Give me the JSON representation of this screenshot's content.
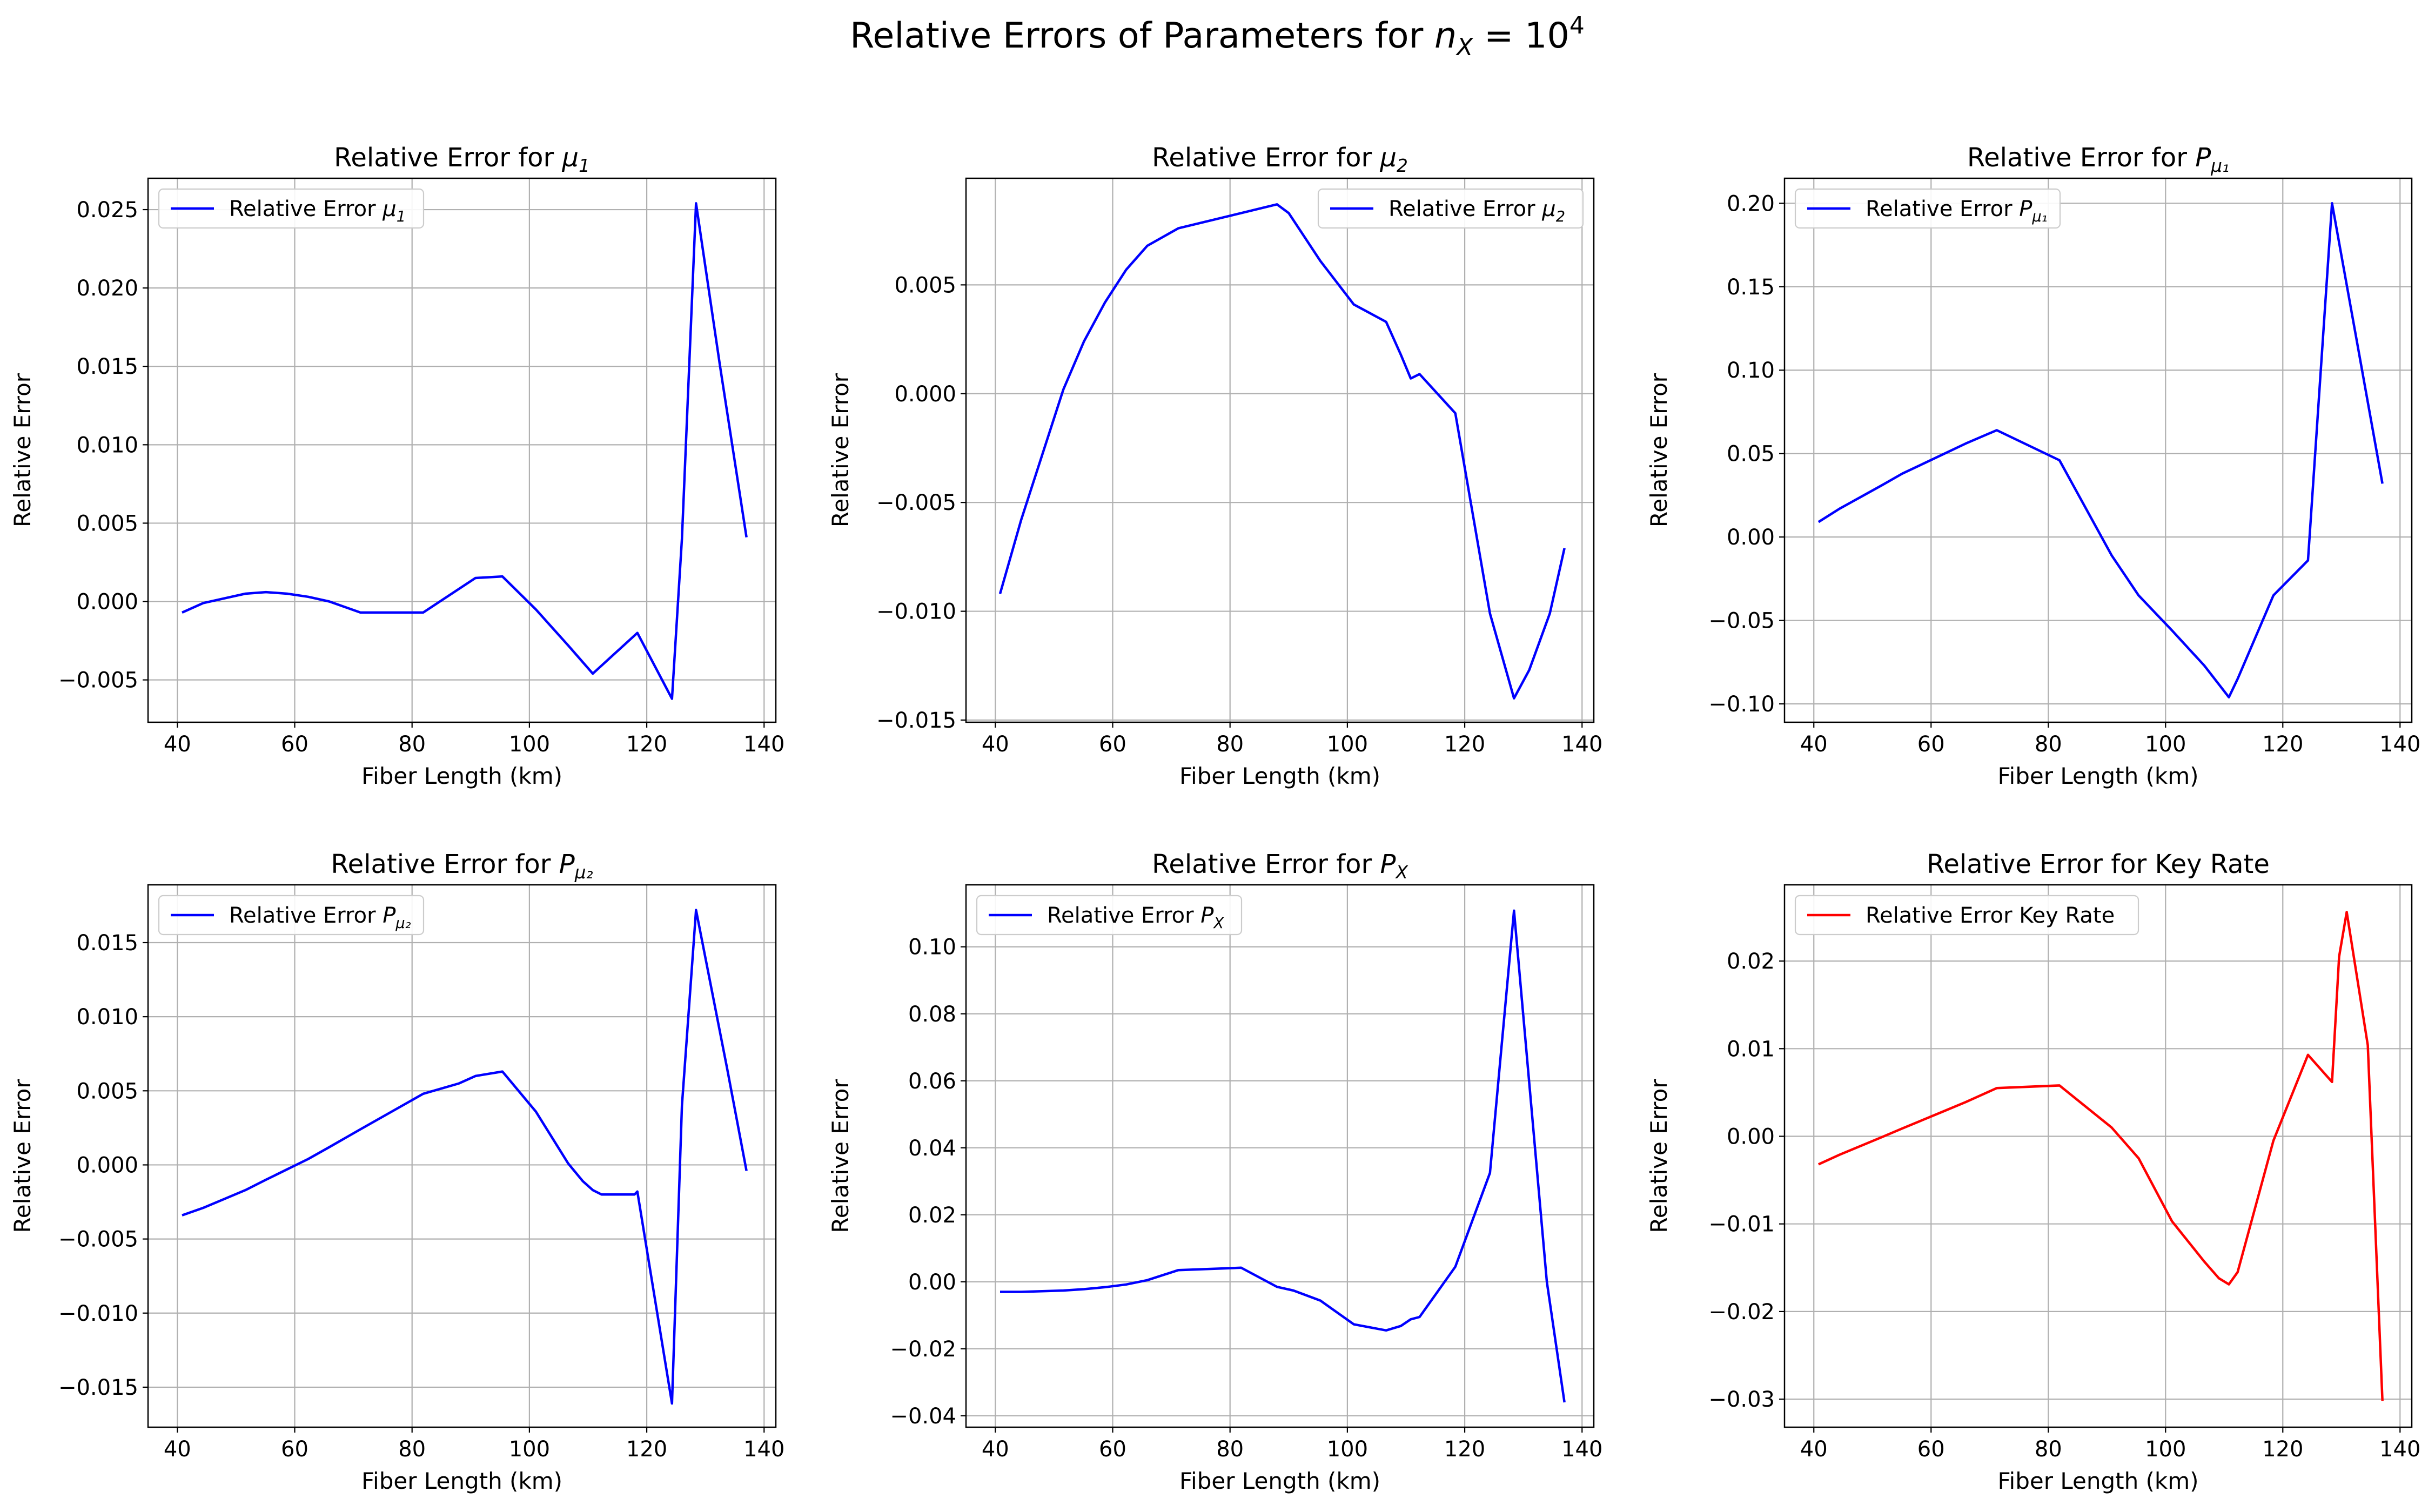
{
  "figure": {
    "title_prefix": "Relative Errors of Parameters for ",
    "title_math": "n",
    "title_math_sub": "X",
    "title_eq": " = 10",
    "title_sup": "4"
  },
  "chart_data": [
    {
      "type": "line",
      "title": "Relative Error for μ₁",
      "title_prefix": "Relative Error for ",
      "title_sym": "μ",
      "title_sub": "1",
      "xlabel": "Fiber Length (km)",
      "ylabel": "Relative Error",
      "xlim": [
        35,
        142
      ],
      "ylim": [
        -0.0077,
        0.027
      ],
      "xticks": [
        40,
        60,
        80,
        100,
        120,
        140
      ],
      "yticks": [
        -0.005,
        0.0,
        0.005,
        0.01,
        0.015,
        0.02,
        0.025
      ],
      "ytick_labels": [
        "−0.005",
        "0.000",
        "0.005",
        "0.010",
        "0.015",
        "0.020",
        "0.025"
      ],
      "grid": true,
      "legend_position": "top-left",
      "series": [
        {
          "name": "Relative Error μ₁",
          "legend_prefix": "Relative Error ",
          "legend_sym": "μ",
          "legend_sub": "1",
          "color": "#0000ff",
          "x": [
            40.8,
            44.4,
            48,
            51.6,
            55.1,
            58.7,
            62.3,
            65.9,
            71.2,
            81.9,
            90.8,
            95.4,
            101.1,
            106.6,
            110.8,
            118.4,
            124.3,
            126,
            128.4,
            132.5,
            137
          ],
          "y": [
            -0.0007,
            -0.0001,
            0.0002,
            0.0005,
            0.0006,
            0.0005,
            0.0003,
            0.0,
            -0.0007,
            -0.0007,
            0.0015,
            0.0016,
            -0.0005,
            -0.0028,
            -0.0046,
            -0.002,
            -0.0062,
            0.004,
            0.0254,
            0.015,
            0.0041
          ]
        }
      ]
    },
    {
      "type": "line",
      "title": "Relative Error for μ₂",
      "title_prefix": "Relative Error for ",
      "title_sym": "μ",
      "title_sub": "2",
      "xlabel": "Fiber Length (km)",
      "ylabel": "Relative Error",
      "xlim": [
        35,
        142
      ],
      "ylim": [
        -0.0151,
        0.0099
      ],
      "xticks": [
        40,
        60,
        80,
        100,
        120,
        140
      ],
      "yticks": [
        -0.015,
        -0.01,
        -0.005,
        0.0,
        0.005
      ],
      "ytick_labels": [
        "−0.015",
        "−0.010",
        "−0.005",
        "0.000",
        "0.005"
      ],
      "grid": true,
      "legend_position": "top-right",
      "series": [
        {
          "name": "Relative Error μ₂",
          "legend_prefix": "Relative Error ",
          "legend_sym": "μ",
          "legend_sub": "2",
          "color": "#0000ff",
          "x": [
            40.8,
            44.4,
            48,
            51.6,
            55.1,
            58.7,
            62.3,
            65.9,
            71.2,
            81.9,
            88,
            90,
            95.4,
            101.1,
            106.6,
            109.1,
            110.8,
            112.3,
            118.4,
            124.3,
            128.4,
            131,
            134.5,
            137
          ],
          "y": [
            -0.0092,
            -0.0058,
            -0.0028,
            0.0002,
            0.0024,
            0.0042,
            0.0057,
            0.0068,
            0.0076,
            0.0083,
            0.0087,
            0.0083,
            0.0061,
            0.0041,
            0.0033,
            0.0018,
            0.0007,
            0.0009,
            -0.0009,
            -0.0101,
            -0.014,
            -0.0127,
            -0.0101,
            -0.0071
          ]
        }
      ]
    },
    {
      "type": "line",
      "title": "Relative Error for P_μ₁",
      "title_prefix": "Relative Error for ",
      "title_sym": "P",
      "title_sub": "μ₁",
      "xlabel": "Fiber Length (km)",
      "ylabel": "Relative Error",
      "xlim": [
        35,
        142
      ],
      "ylim": [
        -0.111,
        0.215
      ],
      "xticks": [
        40,
        60,
        80,
        100,
        120,
        140
      ],
      "yticks": [
        -0.1,
        -0.05,
        0.0,
        0.05,
        0.1,
        0.15,
        0.2
      ],
      "ytick_labels": [
        "−0.10",
        "−0.05",
        "0.00",
        "0.05",
        "0.10",
        "0.15",
        "0.20"
      ],
      "grid": true,
      "legend_position": "top-left",
      "series": [
        {
          "name": "Relative Error P_μ₁",
          "legend_prefix": "Relative Error ",
          "legend_sym": "P",
          "legend_sub": "μ₁",
          "color": "#0000ff",
          "x": [
            40.8,
            44.4,
            48,
            51.6,
            55.1,
            58.7,
            62.3,
            65.9,
            71.2,
            81.9,
            90.8,
            95.4,
            101.1,
            106.6,
            110.8,
            112.3,
            118.4,
            124.3,
            128.4,
            132.5,
            137
          ],
          "y": [
            0.009,
            0.017,
            0.024,
            0.031,
            0.038,
            0.044,
            0.05,
            0.056,
            0.064,
            0.046,
            -0.011,
            -0.035,
            -0.056,
            -0.077,
            -0.096,
            -0.085,
            -0.035,
            -0.014,
            0.2,
            0.12,
            0.032
          ]
        }
      ]
    },
    {
      "type": "line",
      "title": "Relative Error for P_μ₂",
      "title_prefix": "Relative Error for ",
      "title_sym": "P",
      "title_sub": "μ₂",
      "xlabel": "Fiber Length (km)",
      "ylabel": "Relative Error",
      "xlim": [
        35,
        142
      ],
      "ylim": [
        -0.0177,
        0.0189
      ],
      "xticks": [
        40,
        60,
        80,
        100,
        120,
        140
      ],
      "yticks": [
        -0.015,
        -0.01,
        -0.005,
        0.0,
        0.005,
        0.01,
        0.015
      ],
      "ytick_labels": [
        "−0.015",
        "−0.010",
        "−0.005",
        "0.000",
        "0.005",
        "0.010",
        "0.015"
      ],
      "grid": true,
      "legend_position": "top-left",
      "series": [
        {
          "name": "Relative Error P_μ₂",
          "legend_prefix": "Relative Error ",
          "legend_sym": "P",
          "legend_sub": "μ₂",
          "color": "#0000ff",
          "x": [
            40.8,
            44.4,
            48,
            51.6,
            55.1,
            58.7,
            62.3,
            65.9,
            71.2,
            81.9,
            88,
            90.8,
            95.4,
            101.1,
            106.6,
            109.1,
            110.8,
            112.3,
            117.9,
            118.4,
            124.3,
            126,
            128.4,
            133.7,
            137
          ],
          "y": [
            -0.0034,
            -0.0029,
            -0.0023,
            -0.0017,
            -0.001,
            -0.0003,
            0.0004,
            0.0012,
            0.0024,
            0.0048,
            0.0055,
            0.006,
            0.0063,
            0.0036,
            0.0001,
            -0.0011,
            -0.0017,
            -0.002,
            -0.002,
            -0.0018,
            -0.0161,
            0.004,
            0.0172,
            0.0065,
            -0.0004
          ]
        }
      ]
    },
    {
      "type": "line",
      "title": "Relative Error for P_X",
      "title_prefix": "Relative Error for ",
      "title_sym": "P",
      "title_sub": "X",
      "xlabel": "Fiber Length (km)",
      "ylabel": "Relative Error",
      "xlim": [
        35,
        142
      ],
      "ylim": [
        -0.0434,
        0.1185
      ],
      "xticks": [
        40,
        60,
        80,
        100,
        120,
        140
      ],
      "yticks": [
        -0.04,
        -0.02,
        0.0,
        0.02,
        0.04,
        0.06,
        0.08,
        0.1
      ],
      "ytick_labels": [
        "−0.04",
        "−0.02",
        "0.00",
        "0.02",
        "0.04",
        "0.06",
        "0.08",
        "0.10"
      ],
      "grid": true,
      "legend_position": "top-left",
      "series": [
        {
          "name": "Relative Error P_X",
          "legend_prefix": "Relative Error ",
          "legend_sym": "P",
          "legend_sub": "X",
          "color": "#0000ff",
          "x": [
            40.8,
            44.4,
            48,
            51.6,
            55.1,
            58.7,
            62.3,
            65.9,
            71.2,
            81.9,
            88,
            90.8,
            95.4,
            101.1,
            106.6,
            109.1,
            110.8,
            112.3,
            118.4,
            124.3,
            128.4,
            134,
            137
          ],
          "y": [
            -0.003,
            -0.003,
            -0.0028,
            -0.0026,
            -0.0022,
            -0.0016,
            -0.0008,
            0.0005,
            0.0035,
            0.0042,
            -0.0015,
            -0.0026,
            -0.0056,
            -0.0127,
            -0.0145,
            -0.0132,
            -0.0112,
            -0.0105,
            0.0045,
            0.0325,
            0.1108,
            0.0,
            -0.036
          ]
        }
      ]
    },
    {
      "type": "line",
      "title": "Relative Error for Key Rate",
      "title_prefix": "Relative Error for Key Rate",
      "title_sym": "",
      "title_sub": "",
      "xlabel": "Fiber Length (km)",
      "ylabel": "Relative Error",
      "xlim": [
        35,
        142
      ],
      "ylim": [
        -0.0332,
        0.0287
      ],
      "xticks": [
        40,
        60,
        80,
        100,
        120,
        140
      ],
      "yticks": [
        -0.03,
        -0.02,
        -0.01,
        0.0,
        0.01,
        0.02
      ],
      "ytick_labels": [
        "−0.03",
        "−0.02",
        "−0.01",
        "0.00",
        "0.01",
        "0.02"
      ],
      "grid": true,
      "legend_position": "top-left",
      "series": [
        {
          "name": "Relative Error Key Rate",
          "legend_prefix": "Relative Error Key Rate",
          "legend_sym": "",
          "legend_sub": "",
          "color": "#ff0000",
          "x": [
            40.8,
            44.4,
            48,
            51.6,
            55.1,
            58.7,
            62.3,
            65.9,
            71.2,
            81.9,
            90.8,
            95.4,
            101.1,
            106.6,
            109.1,
            110.8,
            112.3,
            118.4,
            124.3,
            128.4,
            129.6,
            130.9,
            134.5,
            137
          ],
          "y": [
            -0.0032,
            -0.0021,
            -0.0011,
            -0.0001,
            0.0009,
            0.0019,
            0.0029,
            0.0039,
            0.0055,
            0.0058,
            0.001,
            -0.0025,
            -0.0097,
            -0.0143,
            -0.0162,
            -0.0169,
            -0.0155,
            -0.0005,
            0.0093,
            0.0062,
            0.0205,
            0.0256,
            0.0104,
            -0.0302
          ]
        }
      ]
    }
  ]
}
